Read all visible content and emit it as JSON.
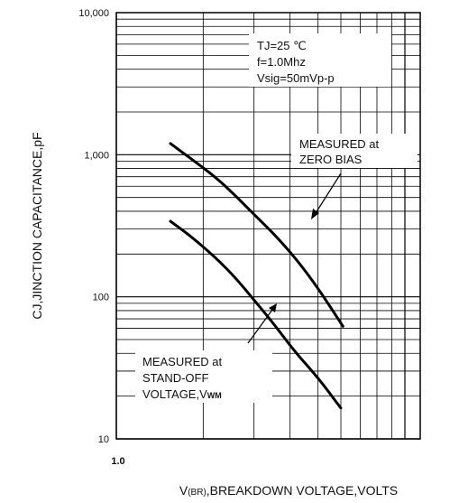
{
  "chart_data": {
    "type": "line",
    "title": "",
    "xlabel_parts": [
      "V",
      "(BR)",
      ",BREAKDOWN VOLTAGE,VOLTS"
    ],
    "ylabel": "CJ,JINCTION CAPACITANCE,pF",
    "y_scale": "log",
    "x_scale": "log",
    "ylim": [
      10,
      10000
    ],
    "y_ticks": [
      10,
      100,
      1000,
      10000
    ],
    "y_tick_labels": [
      "10",
      "100",
      "1,000",
      "10,000"
    ],
    "x_tick_labels": [
      "1.0"
    ],
    "x_first_tick": 1.0,
    "grid": true,
    "conditions": [
      "TJ=25 ℃",
      "f=1.0Mhz",
      "Vsig=50mVp-p"
    ],
    "series": [
      {
        "name": "MEASURED at ZERO BIAS",
        "points": [
          [
            1.54,
            1200
          ],
          [
            1.8,
            950
          ],
          [
            2.2,
            700
          ],
          [
            2.6,
            510
          ],
          [
            3.0,
            380
          ],
          [
            3.5,
            280
          ],
          [
            4.2,
            185
          ],
          [
            5.0,
            115
          ],
          [
            6.1,
            62
          ]
        ]
      },
      {
        "name": "MEASURED at STAND-OFF VOLTAGE,VWM",
        "points": [
          [
            1.54,
            340
          ],
          [
            1.8,
            270
          ],
          [
            2.2,
            190
          ],
          [
            2.6,
            135
          ],
          [
            3.0,
            95
          ],
          [
            3.5,
            65
          ],
          [
            4.2,
            40
          ],
          [
            5.0,
            27
          ],
          [
            6.0,
            16.5
          ]
        ]
      }
    ],
    "annotations": [
      {
        "lines": [
          "MEASURED at",
          "ZERO BIAS"
        ],
        "points_to_series": 0
      },
      {
        "lines": [
          "MEASURED at",
          "STAND-OFF",
          "VOLTAGE,VWM"
        ],
        "points_to_series": 1
      }
    ]
  }
}
